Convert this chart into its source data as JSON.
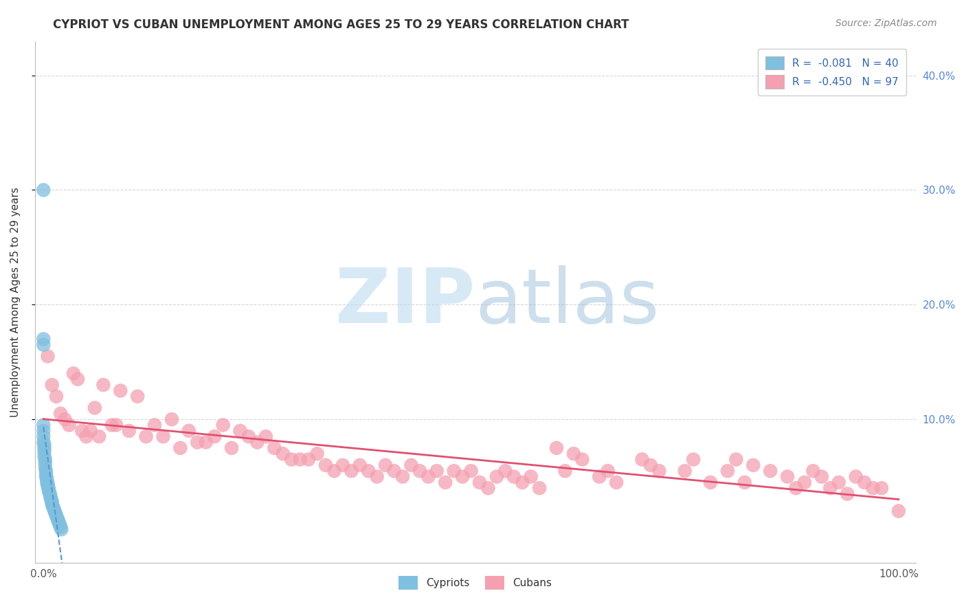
{
  "title": "CYPRIOT VS CUBAN UNEMPLOYMENT AMONG AGES 25 TO 29 YEARS CORRELATION CHART",
  "source": "Source: ZipAtlas.com",
  "ylabel": "Unemployment Among Ages 25 to 29 years",
  "xmin": -0.01,
  "xmax": 1.02,
  "ymin": -0.025,
  "ymax": 0.43,
  "right_ytick_labels": [
    "10.0%",
    "20.0%",
    "30.0%",
    "40.0%"
  ],
  "right_ytick_vals": [
    0.1,
    0.2,
    0.3,
    0.4
  ],
  "xtick_vals": [
    0.0,
    1.0
  ],
  "xtick_labels": [
    "0.0%",
    "100.0%"
  ],
  "cypriot_color": "#7fbfdf",
  "cuban_color": "#f4a0b0",
  "trend_cypriot_color": "#5599cc",
  "trend_cuban_color": "#e05070",
  "background_color": "#ffffff",
  "grid_color": "#cccccc",
  "watermark_zip": "ZIP",
  "watermark_atlas": "atlas",
  "cypriot_x": [
    0.0,
    0.0,
    0.0,
    0.0,
    0.0,
    0.0,
    0.0,
    0.001,
    0.001,
    0.001,
    0.001,
    0.002,
    0.002,
    0.002,
    0.003,
    0.003,
    0.003,
    0.004,
    0.004,
    0.005,
    0.005,
    0.006,
    0.006,
    0.007,
    0.008,
    0.008,
    0.009,
    0.01,
    0.01,
    0.011,
    0.012,
    0.013,
    0.014,
    0.015,
    0.016,
    0.017,
    0.018,
    0.019,
    0.02,
    0.021
  ],
  "cypriot_y": [
    0.3,
    0.17,
    0.165,
    0.095,
    0.09,
    0.085,
    0.08,
    0.078,
    0.075,
    0.072,
    0.068,
    0.065,
    0.062,
    0.058,
    0.055,
    0.052,
    0.05,
    0.048,
    0.045,
    0.044,
    0.042,
    0.04,
    0.038,
    0.036,
    0.034,
    0.032,
    0.03,
    0.028,
    0.026,
    0.024,
    0.022,
    0.02,
    0.018,
    0.016,
    0.014,
    0.012,
    0.01,
    0.008,
    0.006,
    0.004
  ],
  "cuban_x": [
    0.005,
    0.01,
    0.015,
    0.02,
    0.025,
    0.03,
    0.035,
    0.04,
    0.045,
    0.05,
    0.055,
    0.06,
    0.065,
    0.07,
    0.08,
    0.085,
    0.09,
    0.1,
    0.11,
    0.12,
    0.13,
    0.14,
    0.15,
    0.16,
    0.17,
    0.18,
    0.19,
    0.2,
    0.21,
    0.22,
    0.23,
    0.24,
    0.25,
    0.26,
    0.27,
    0.28,
    0.29,
    0.3,
    0.31,
    0.32,
    0.33,
    0.34,
    0.35,
    0.36,
    0.37,
    0.38,
    0.39,
    0.4,
    0.41,
    0.42,
    0.43,
    0.44,
    0.45,
    0.46,
    0.47,
    0.48,
    0.49,
    0.5,
    0.51,
    0.52,
    0.53,
    0.54,
    0.55,
    0.56,
    0.57,
    0.58,
    0.6,
    0.61,
    0.62,
    0.63,
    0.65,
    0.66,
    0.67,
    0.7,
    0.71,
    0.72,
    0.75,
    0.76,
    0.78,
    0.8,
    0.81,
    0.82,
    0.83,
    0.85,
    0.87,
    0.88,
    0.89,
    0.9,
    0.91,
    0.92,
    0.93,
    0.94,
    0.95,
    0.96,
    0.97,
    0.98,
    1.0
  ],
  "cuban_y": [
    0.155,
    0.13,
    0.12,
    0.105,
    0.1,
    0.095,
    0.14,
    0.135,
    0.09,
    0.085,
    0.09,
    0.11,
    0.085,
    0.13,
    0.095,
    0.095,
    0.125,
    0.09,
    0.12,
    0.085,
    0.095,
    0.085,
    0.1,
    0.075,
    0.09,
    0.08,
    0.08,
    0.085,
    0.095,
    0.075,
    0.09,
    0.085,
    0.08,
    0.085,
    0.075,
    0.07,
    0.065,
    0.065,
    0.065,
    0.07,
    0.06,
    0.055,
    0.06,
    0.055,
    0.06,
    0.055,
    0.05,
    0.06,
    0.055,
    0.05,
    0.06,
    0.055,
    0.05,
    0.055,
    0.045,
    0.055,
    0.05,
    0.055,
    0.045,
    0.04,
    0.05,
    0.055,
    0.05,
    0.045,
    0.05,
    0.04,
    0.075,
    0.055,
    0.07,
    0.065,
    0.05,
    0.055,
    0.045,
    0.065,
    0.06,
    0.055,
    0.055,
    0.065,
    0.045,
    0.055,
    0.065,
    0.045,
    0.06,
    0.055,
    0.05,
    0.04,
    0.045,
    0.055,
    0.05,
    0.04,
    0.045,
    0.035,
    0.05,
    0.045,
    0.04,
    0.04,
    0.02
  ]
}
